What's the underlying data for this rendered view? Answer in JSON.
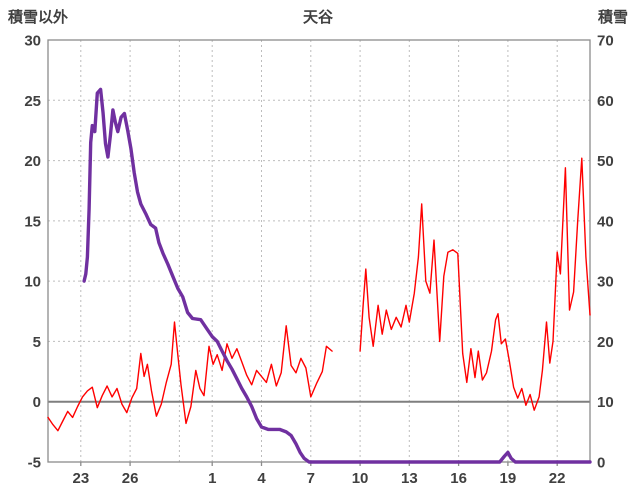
{
  "header": {
    "left_axis_title": "積雪以外",
    "chart_title": "天谷",
    "right_axis_title": "積雪"
  },
  "chart_data": {
    "type": "line",
    "title": "天谷",
    "x_axis": {
      "min": 0,
      "max": 33,
      "tick_days": [
        2,
        5,
        10,
        13,
        16,
        19,
        22,
        25,
        28,
        31
      ],
      "tick_labels": [
        "23",
        "26",
        "1",
        "4",
        "7",
        "10",
        "13",
        "16",
        "19",
        "22"
      ],
      "minor_grid_days": [
        8
      ]
    },
    "left_axis": {
      "label": "積雪以外",
      "min": -5,
      "max": 30,
      "ticks": [
        30,
        25,
        20,
        15,
        10,
        5,
        0,
        -5
      ],
      "grid_values": [
        25,
        20,
        15,
        10,
        5
      ],
      "zero_value": 0
    },
    "right_axis": {
      "label": "積雪",
      "min": 0,
      "max": 70,
      "ticks": [
        70,
        60,
        50,
        40,
        30,
        20,
        10,
        0
      ]
    },
    "colors": {
      "grid": "#bdbdbd",
      "border": "#8c8c8c",
      "zero_line": "#7f7f7f",
      "text": "#404040",
      "red_series": "#ff0000",
      "purple_series": "#7030a0"
    },
    "series": [
      {
        "name": "積雪以外",
        "color": "#ff0000",
        "width": 1.4,
        "segments": [
          [
            [
              0,
              -1.3
            ],
            [
              0.3,
              -1.9
            ],
            [
              0.6,
              -2.4
            ],
            [
              0.9,
              -1.6
            ],
            [
              1.2,
              -0.8
            ],
            [
              1.5,
              -1.3
            ],
            [
              1.8,
              -0.4
            ],
            [
              2.1,
              0.4
            ],
            [
              2.4,
              0.9
            ],
            [
              2.7,
              1.2
            ],
            [
              3.0,
              -0.5
            ],
            [
              3.3,
              0.5
            ],
            [
              3.6,
              1.3
            ],
            [
              3.9,
              0.4
            ],
            [
              4.2,
              1.1
            ],
            [
              4.5,
              -0.2
            ],
            [
              4.8,
              -0.9
            ],
            [
              5.1,
              0.3
            ],
            [
              5.4,
              1.1
            ],
            [
              5.65,
              4.0
            ],
            [
              5.85,
              2.1
            ],
            [
              6.05,
              3.1
            ],
            [
              6.3,
              0.9
            ],
            [
              6.6,
              -1.2
            ],
            [
              6.9,
              -0.2
            ],
            [
              7.2,
              1.6
            ],
            [
              7.5,
              3.1
            ],
            [
              7.7,
              6.6
            ],
            [
              7.9,
              3.9
            ],
            [
              8.1,
              1.4
            ],
            [
              8.4,
              -1.8
            ],
            [
              8.7,
              -0.4
            ],
            [
              9.0,
              2.6
            ],
            [
              9.25,
              1.1
            ],
            [
              9.5,
              0.5
            ],
            [
              9.8,
              4.6
            ],
            [
              10.05,
              3.1
            ],
            [
              10.3,
              3.9
            ],
            [
              10.6,
              2.6
            ],
            [
              10.9,
              4.8
            ],
            [
              11.2,
              3.6
            ],
            [
              11.5,
              4.4
            ],
            [
              11.8,
              3.3
            ],
            [
              12.1,
              2.2
            ],
            [
              12.4,
              1.4
            ],
            [
              12.7,
              2.6
            ],
            [
              13.0,
              2.1
            ],
            [
              13.3,
              1.6
            ],
            [
              13.6,
              3.1
            ],
            [
              13.9,
              1.3
            ],
            [
              14.2,
              2.4
            ],
            [
              14.5,
              6.3
            ],
            [
              14.8,
              3.0
            ],
            [
              15.1,
              2.4
            ],
            [
              15.4,
              3.6
            ],
            [
              15.7,
              2.8
            ],
            [
              16.0,
              0.4
            ],
            [
              16.35,
              1.5
            ],
            [
              16.7,
              2.5
            ],
            [
              16.95,
              4.6
            ],
            [
              17.3,
              4.2
            ]
          ],
          [
            [
              19.0,
              4.2
            ],
            [
              19.2,
              8.2
            ],
            [
              19.35,
              11.0
            ],
            [
              19.55,
              7.0
            ],
            [
              19.8,
              4.6
            ],
            [
              20.1,
              8.0
            ],
            [
              20.35,
              5.6
            ],
            [
              20.6,
              7.6
            ],
            [
              20.9,
              6.0
            ],
            [
              21.2,
              7.0
            ],
            [
              21.5,
              6.2
            ],
            [
              21.8,
              8.0
            ],
            [
              22.0,
              6.6
            ],
            [
              22.3,
              9.0
            ],
            [
              22.55,
              12.0
            ],
            [
              22.75,
              16.4
            ],
            [
              23.0,
              10.0
            ],
            [
              23.25,
              9.0
            ],
            [
              23.5,
              13.4
            ],
            [
              23.85,
              5.0
            ],
            [
              24.1,
              10.4
            ],
            [
              24.35,
              12.4
            ],
            [
              24.65,
              12.6
            ],
            [
              24.95,
              12.3
            ],
            [
              25.25,
              4.0
            ],
            [
              25.5,
              1.6
            ],
            [
              25.75,
              4.4
            ],
            [
              26.0,
              2.0
            ],
            [
              26.2,
              4.2
            ],
            [
              26.45,
              1.8
            ],
            [
              26.7,
              2.4
            ],
            [
              27.0,
              4.2
            ],
            [
              27.25,
              6.8
            ],
            [
              27.4,
              7.3
            ],
            [
              27.6,
              4.8
            ],
            [
              27.85,
              5.2
            ],
            [
              28.1,
              3.3
            ],
            [
              28.35,
              1.2
            ],
            [
              28.6,
              0.3
            ],
            [
              28.85,
              1.1
            ],
            [
              29.1,
              -0.3
            ],
            [
              29.35,
              0.6
            ],
            [
              29.6,
              -0.7
            ],
            [
              29.9,
              0.4
            ],
            [
              30.1,
              2.6
            ],
            [
              30.35,
              6.6
            ],
            [
              30.55,
              3.2
            ],
            [
              30.75,
              5.0
            ],
            [
              31.0,
              12.4
            ],
            [
              31.2,
              10.6
            ],
            [
              31.5,
              19.4
            ],
            [
              31.75,
              7.6
            ],
            [
              32.0,
              9.1
            ],
            [
              32.25,
              15.0
            ],
            [
              32.5,
              20.2
            ],
            [
              32.75,
              12.0
            ],
            [
              33.0,
              7.2
            ]
          ]
        ]
      },
      {
        "name": "積雪",
        "color": "#7030a0",
        "width": 3.4,
        "segments": [
          [
            [
              2.2,
              10.0
            ],
            [
              2.3,
              10.6
            ],
            [
              2.4,
              12.0
            ],
            [
              2.5,
              16.0
            ],
            [
              2.6,
              21.5
            ],
            [
              2.7,
              22.9
            ],
            [
              2.85,
              22.4
            ],
            [
              3.0,
              25.6
            ],
            [
              3.2,
              25.9
            ],
            [
              3.35,
              24.0
            ],
            [
              3.5,
              21.4
            ],
            [
              3.65,
              20.3
            ],
            [
              3.8,
              22.1
            ],
            [
              3.95,
              24.2
            ],
            [
              4.1,
              23.2
            ],
            [
              4.25,
              22.4
            ],
            [
              4.45,
              23.6
            ],
            [
              4.65,
              23.9
            ],
            [
              4.85,
              22.5
            ],
            [
              5.05,
              21.0
            ],
            [
              5.25,
              19.0
            ],
            [
              5.45,
              17.4
            ],
            [
              5.65,
              16.4
            ],
            [
              5.95,
              15.6
            ],
            [
              6.25,
              14.7
            ],
            [
              6.55,
              14.4
            ],
            [
              6.75,
              13.2
            ],
            [
              7.0,
              12.3
            ],
            [
              7.3,
              11.4
            ],
            [
              7.6,
              10.4
            ],
            [
              7.9,
              9.4
            ],
            [
              8.2,
              8.7
            ],
            [
              8.5,
              7.4
            ],
            [
              8.8,
              6.9
            ],
            [
              9.3,
              6.8
            ],
            [
              9.7,
              6.0
            ],
            [
              10.0,
              5.4
            ],
            [
              10.3,
              5.0
            ],
            [
              10.6,
              4.2
            ],
            [
              10.9,
              3.4
            ],
            [
              11.2,
              2.7
            ],
            [
              11.5,
              1.9
            ],
            [
              11.8,
              1.1
            ],
            [
              12.1,
              0.4
            ],
            [
              12.4,
              -0.4
            ],
            [
              12.7,
              -1.4
            ],
            [
              13.0,
              -2.1
            ],
            [
              13.4,
              -2.3
            ],
            [
              14.1,
              -2.3
            ],
            [
              14.5,
              -2.5
            ],
            [
              14.8,
              -2.8
            ],
            [
              15.1,
              -3.5
            ],
            [
              15.35,
              -4.2
            ],
            [
              15.6,
              -4.7
            ],
            [
              15.9,
              -5.0
            ],
            [
              27.5,
              -5.0
            ],
            [
              27.8,
              -4.5
            ],
            [
              28.0,
              -4.2
            ],
            [
              28.2,
              -4.7
            ],
            [
              28.45,
              -5.0
            ],
            [
              33.0,
              -5.0
            ]
          ]
        ]
      }
    ]
  }
}
